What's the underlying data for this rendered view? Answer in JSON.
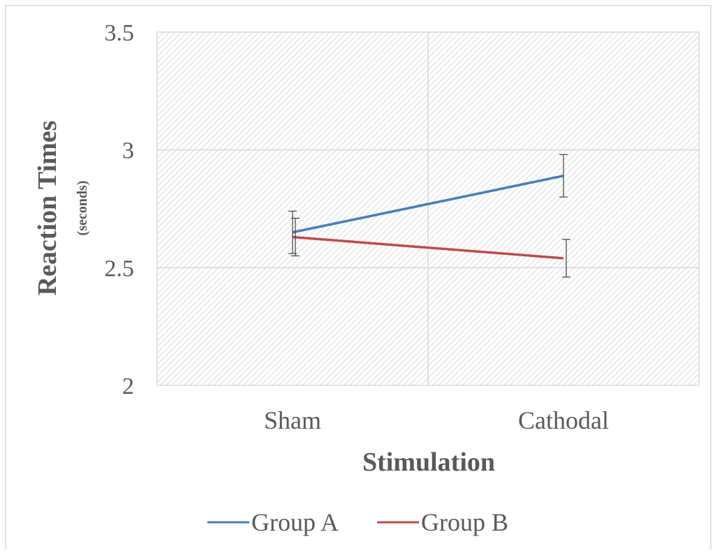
{
  "chart_data": {
    "type": "line",
    "categories": [
      "Sham",
      "Cathodal"
    ],
    "series": [
      {
        "name": "Group A",
        "values": [
          2.65,
          2.89
        ],
        "error": [
          0.09,
          0.09
        ],
        "color": "#4a7ebb"
      },
      {
        "name": "Group B",
        "values": [
          2.63,
          2.54
        ],
        "error": [
          0.08,
          0.08
        ],
        "color": "#be4b48"
      }
    ],
    "title": "",
    "xlabel": "Stimulation",
    "ylabel": "Reaction Times",
    "ylabel_sub": "(seconds)",
    "ylim": [
      2,
      3.5
    ],
    "yticks": [
      "2",
      "2.5",
      "3",
      "3.5"
    ],
    "grid": true,
    "plot_background": "hatched",
    "legend_position": "bottom"
  }
}
